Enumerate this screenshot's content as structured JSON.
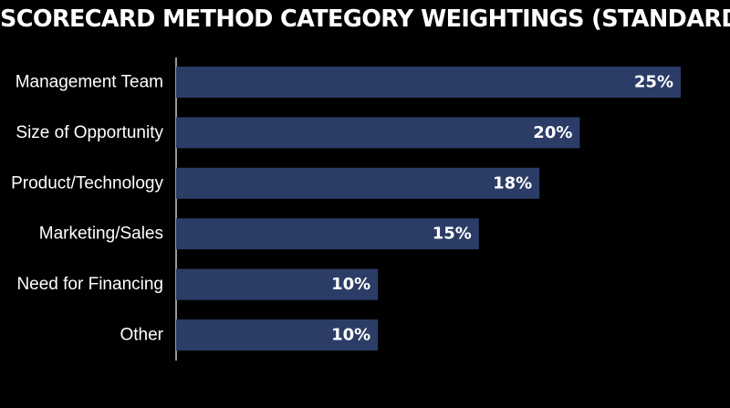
{
  "chart_data": {
    "type": "bar",
    "orientation": "horizontal",
    "title": "SCORECARD METHOD CATEGORY WEIGHTINGS (STANDARD)",
    "categories": [
      "Management Team",
      "Size of Opportunity",
      "Product/Technology",
      "Marketing/Sales",
      "Need for Financing",
      "Other"
    ],
    "values": [
      25,
      20,
      18,
      15,
      10,
      10
    ],
    "value_labels": [
      "25%",
      "20%",
      "18%",
      "15%",
      "10%",
      "10%"
    ],
    "xlim": [
      0,
      25
    ],
    "xlabel": "",
    "ylabel": "",
    "grid": false,
    "legend": "none",
    "colors": {
      "background": "#000000",
      "bar": "#2b3d66",
      "text": "#ffffff",
      "axis": "#ffffff"
    }
  }
}
